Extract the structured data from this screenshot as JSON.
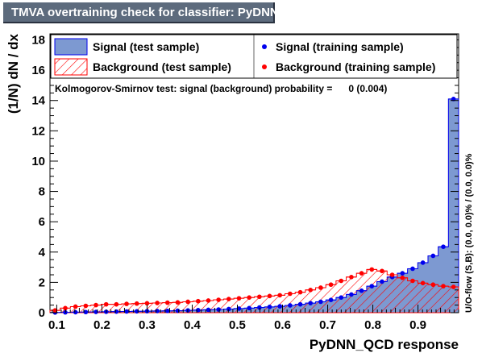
{
  "title": "TMVA overtraining check for classifier: PyDNN_QCD",
  "chart_data": {
    "type": "bar",
    "xlabel": "PyDNN_QCD response",
    "ylabel": "(1/N) dN / dx",
    "xlim": [
      0.085,
      0.99
    ],
    "ylim": [
      0,
      18.4
    ],
    "x_ticks": [
      "0.1",
      "0.2",
      "0.3",
      "0.4",
      "0.5",
      "0.6",
      "0.7",
      "0.8",
      "0.9"
    ],
    "y_ticks": [
      "0",
      "2",
      "4",
      "6",
      "8",
      "10",
      "12",
      "14",
      "16",
      "18"
    ],
    "bin_edges_range": [
      0.085,
      0.99
    ],
    "n_bins": 40,
    "legend": [
      {
        "label": "Signal (test sample)",
        "style": "fill",
        "color": "#7d99d1"
      },
      {
        "label": "Signal (training sample)",
        "style": "marker",
        "color": "#0000ee"
      },
      {
        "label": "Background (test sample)",
        "style": "hatch",
        "color": "#ff0000"
      },
      {
        "label": "Background (training sample)",
        "style": "marker",
        "color": "#ff0000"
      }
    ],
    "annotation": "Kolmogorov-Smirnov test: signal (background) probability =      0 (0.004)",
    "side_label": "U/O-flow (S,B): (0.0, 0.0)% / (0.0, 0.0)%",
    "series": [
      {
        "name": "Signal (test sample)",
        "values": [
          0.01,
          0.02,
          0.03,
          0.04,
          0.05,
          0.06,
          0.07,
          0.08,
          0.09,
          0.1,
          0.11,
          0.12,
          0.13,
          0.15,
          0.17,
          0.19,
          0.21,
          0.24,
          0.27,
          0.3,
          0.34,
          0.38,
          0.42,
          0.48,
          0.55,
          0.63,
          0.72,
          0.84,
          1.0,
          1.2,
          1.45,
          1.75,
          2.05,
          2.35,
          2.6,
          2.9,
          3.3,
          3.75,
          4.35,
          14.1
        ]
      },
      {
        "name": "Signal (training sample)",
        "values": [
          0.01,
          0.02,
          0.03,
          0.04,
          0.05,
          0.06,
          0.07,
          0.08,
          0.09,
          0.1,
          0.11,
          0.12,
          0.13,
          0.15,
          0.17,
          0.19,
          0.21,
          0.24,
          0.27,
          0.3,
          0.34,
          0.38,
          0.42,
          0.48,
          0.55,
          0.63,
          0.72,
          0.84,
          1.0,
          1.2,
          1.45,
          1.75,
          2.05,
          2.35,
          2.6,
          2.9,
          3.3,
          3.75,
          4.35,
          14.1
        ]
      },
      {
        "name": "Background (test sample)",
        "values": [
          0.15,
          0.3,
          0.4,
          0.45,
          0.5,
          0.55,
          0.55,
          0.58,
          0.6,
          0.62,
          0.64,
          0.66,
          0.68,
          0.72,
          0.76,
          0.8,
          0.85,
          0.9,
          0.95,
          1.0,
          1.05,
          1.1,
          1.15,
          1.25,
          1.35,
          1.5,
          1.65,
          1.85,
          2.1,
          2.35,
          2.6,
          2.85,
          2.75,
          2.5,
          2.3,
          2.1,
          1.95,
          1.85,
          1.75,
          1.7
        ]
      },
      {
        "name": "Background (training sample)",
        "values": [
          0.15,
          0.3,
          0.4,
          0.45,
          0.5,
          0.55,
          0.55,
          0.58,
          0.6,
          0.62,
          0.64,
          0.66,
          0.68,
          0.72,
          0.76,
          0.8,
          0.85,
          0.9,
          0.95,
          1.0,
          1.05,
          1.1,
          1.15,
          1.25,
          1.35,
          1.5,
          1.65,
          1.85,
          2.1,
          2.35,
          2.6,
          2.85,
          2.75,
          2.5,
          2.3,
          2.1,
          1.95,
          1.85,
          1.75,
          1.7
        ]
      }
    ]
  }
}
